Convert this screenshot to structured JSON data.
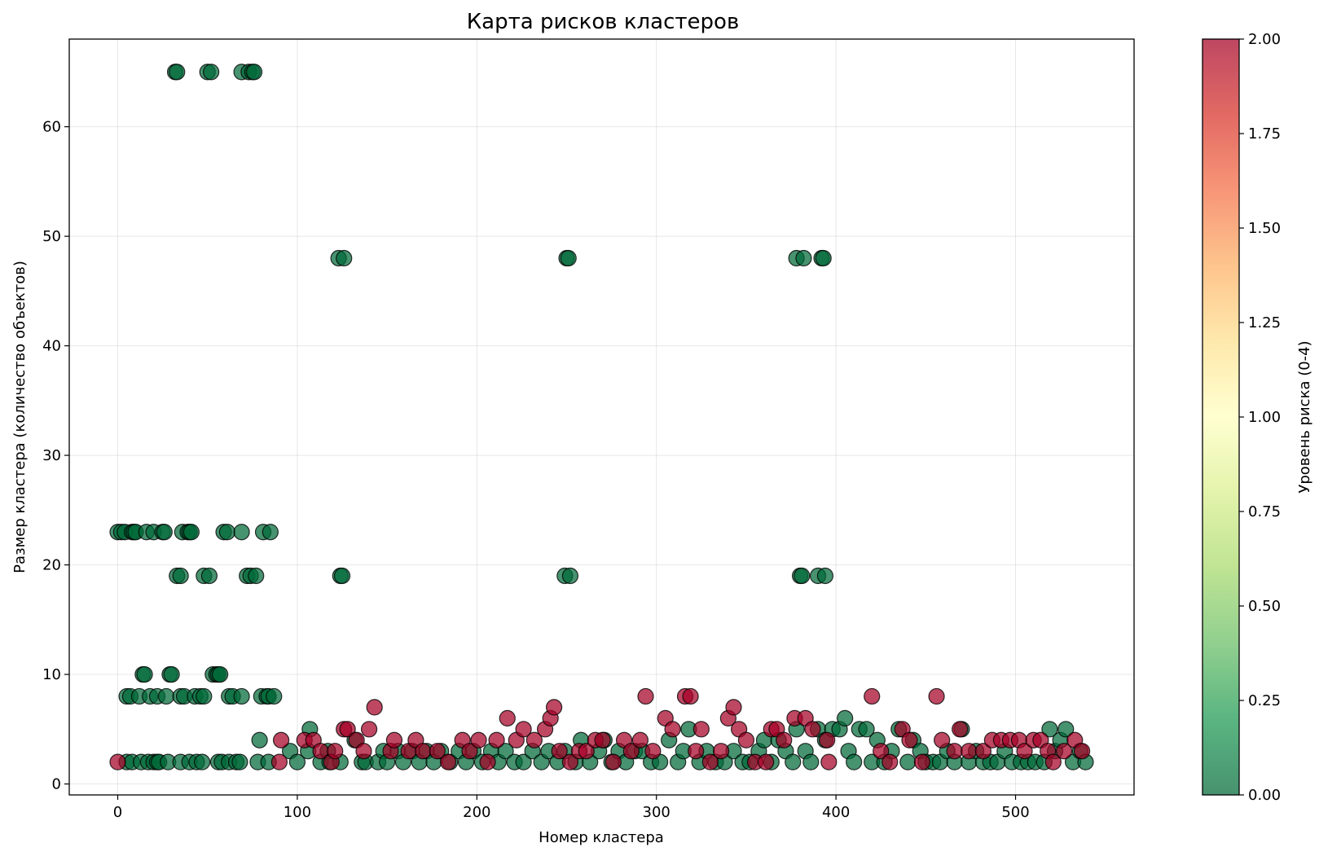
{
  "chart_data": {
    "type": "scatter",
    "title": "Карта рисков кластеров",
    "xlabel": "Номер кластера",
    "ylabel": "Размер кластера (количество объектов)",
    "xlim": [
      -27,
      566
    ],
    "ylim": [
      -1,
      68
    ],
    "xticks": [
      "0",
      "100",
      "200",
      "300",
      "400",
      "500"
    ],
    "xtick_values": [
      0,
      100,
      200,
      300,
      400,
      500
    ],
    "yticks": [
      "0",
      "10",
      "20",
      "30",
      "40",
      "50",
      "60"
    ],
    "ytick_values": [
      0,
      10,
      20,
      30,
      40,
      50,
      60
    ],
    "grid": true,
    "colorbar": {
      "label": "Уровень риска (0-4)",
      "range": [
        0,
        2
      ],
      "colormap": "RdYlGn_r",
      "ticks": [
        "0.00",
        "0.25",
        "0.50",
        "0.75",
        "1.00",
        "1.25",
        "1.50",
        "1.75",
        "2.00"
      ],
      "tick_values": [
        0,
        0.25,
        0.5,
        0.75,
        1.0,
        1.25,
        1.5,
        1.75,
        2.0
      ],
      "colors": [
        "#006837",
        "#1a9850",
        "#66bd63",
        "#a6d96a",
        "#d9ef8b",
        "#ffffbf",
        "#fee08b",
        "#fdae61",
        "#f46d43",
        "#d73027",
        "#a50026"
      ]
    },
    "points_risk0": [
      [
        0,
        23
      ],
      [
        2,
        23
      ],
      [
        4,
        23
      ],
      [
        8,
        23
      ],
      [
        9,
        23
      ],
      [
        10,
        23
      ],
      [
        16,
        23
      ],
      [
        20,
        23
      ],
      [
        25,
        23
      ],
      [
        26,
        23
      ],
      [
        36,
        23
      ],
      [
        39,
        23
      ],
      [
        40,
        23
      ],
      [
        41,
        23
      ],
      [
        59,
        23
      ],
      [
        61,
        23
      ],
      [
        69,
        23
      ],
      [
        81,
        23
      ],
      [
        85,
        23
      ],
      [
        32,
        65
      ],
      [
        33,
        65
      ],
      [
        50,
        65
      ],
      [
        52,
        65
      ],
      [
        69,
        65
      ],
      [
        73,
        65
      ],
      [
        75,
        65
      ],
      [
        76,
        65
      ],
      [
        33,
        19
      ],
      [
        35,
        19
      ],
      [
        48,
        19
      ],
      [
        51,
        19
      ],
      [
        72,
        19
      ],
      [
        74,
        19
      ],
      [
        77,
        19
      ],
      [
        124,
        19
      ],
      [
        125,
        19
      ],
      [
        249,
        19
      ],
      [
        252,
        19
      ],
      [
        380,
        19
      ],
      [
        381,
        19
      ],
      [
        390,
        19
      ],
      [
        394,
        19
      ],
      [
        123,
        48
      ],
      [
        126,
        48
      ],
      [
        250,
        48
      ],
      [
        251,
        48
      ],
      [
        378,
        48
      ],
      [
        382,
        48
      ],
      [
        392,
        48
      ],
      [
        393,
        48
      ],
      [
        14,
        10
      ],
      [
        15,
        10
      ],
      [
        29,
        10
      ],
      [
        30,
        10
      ],
      [
        53,
        10
      ],
      [
        55,
        10
      ],
      [
        56,
        10
      ],
      [
        57,
        10
      ],
      [
        5,
        8
      ],
      [
        7,
        8
      ],
      [
        12,
        8
      ],
      [
        18,
        8
      ],
      [
        22,
        8
      ],
      [
        27,
        8
      ],
      [
        35,
        8
      ],
      [
        37,
        8
      ],
      [
        43,
        8
      ],
      [
        46,
        8
      ],
      [
        48,
        8
      ],
      [
        62,
        8
      ],
      [
        64,
        8
      ],
      [
        69,
        8
      ],
      [
        80,
        8
      ],
      [
        83,
        8
      ],
      [
        84,
        8
      ],
      [
        87,
        8
      ],
      [
        5,
        2
      ],
      [
        8,
        2
      ],
      [
        13,
        2
      ],
      [
        17,
        2
      ],
      [
        20,
        2
      ],
      [
        22,
        2
      ],
      [
        23,
        2
      ],
      [
        28,
        2
      ],
      [
        35,
        2
      ],
      [
        40,
        2
      ],
      [
        44,
        2
      ],
      [
        47,
        2
      ],
      [
        56,
        2
      ],
      [
        58,
        2
      ],
      [
        62,
        2
      ],
      [
        66,
        2
      ],
      [
        68,
        2
      ],
      [
        78,
        2
      ],
      [
        84,
        2
      ],
      [
        79,
        4
      ],
      [
        96,
        3
      ],
      [
        100,
        2
      ],
      [
        106,
        3
      ],
      [
        107,
        5
      ],
      [
        113,
        2
      ],
      [
        117,
        3
      ],
      [
        118,
        2
      ],
      [
        124,
        2
      ],
      [
        132,
        4
      ],
      [
        136,
        2
      ],
      [
        138,
        2
      ],
      [
        145,
        2
      ],
      [
        148,
        3
      ],
      [
        150,
        2
      ],
      [
        156,
        3
      ],
      [
        159,
        2
      ],
      [
        164,
        3
      ],
      [
        168,
        2
      ],
      [
        172,
        3
      ],
      [
        176,
        2
      ],
      [
        180,
        3
      ],
      [
        185,
        2
      ],
      [
        190,
        3
      ],
      [
        194,
        2
      ],
      [
        198,
        3
      ],
      [
        203,
        2
      ],
      [
        208,
        3
      ],
      [
        212,
        2
      ],
      [
        216,
        3
      ],
      [
        221,
        2
      ],
      [
        226,
        2
      ],
      [
        231,
        3
      ],
      [
        236,
        2
      ],
      [
        240,
        3
      ],
      [
        245,
        2
      ],
      [
        249,
        3
      ],
      [
        255,
        2
      ],
      [
        258,
        4
      ],
      [
        263,
        2
      ],
      [
        268,
        3
      ],
      [
        271,
        4
      ],
      [
        275,
        2
      ],
      [
        279,
        3
      ],
      [
        283,
        2
      ],
      [
        288,
        3
      ],
      [
        292,
        3
      ],
      [
        297,
        2
      ],
      [
        302,
        2
      ],
      [
        307,
        4
      ],
      [
        312,
        2
      ],
      [
        315,
        3
      ],
      [
        318,
        5
      ],
      [
        324,
        2
      ],
      [
        328,
        3
      ],
      [
        333,
        2
      ],
      [
        338,
        2
      ],
      [
        343,
        3
      ],
      [
        348,
        2
      ],
      [
        352,
        2
      ],
      [
        357,
        3
      ],
      [
        360,
        4
      ],
      [
        364,
        2
      ],
      [
        368,
        4
      ],
      [
        372,
        3
      ],
      [
        376,
        2
      ],
      [
        378,
        5
      ],
      [
        383,
        3
      ],
      [
        386,
        2
      ],
      [
        390,
        5
      ],
      [
        394,
        4
      ],
      [
        398,
        5
      ],
      [
        402,
        5
      ],
      [
        405,
        6
      ],
      [
        407,
        3
      ],
      [
        410,
        2
      ],
      [
        413,
        5
      ],
      [
        417,
        5
      ],
      [
        420,
        2
      ],
      [
        423,
        4
      ],
      [
        427,
        2
      ],
      [
        431,
        3
      ],
      [
        435,
        5
      ],
      [
        440,
        2
      ],
      [
        443,
        4
      ],
      [
        447,
        3
      ],
      [
        450,
        2
      ],
      [
        454,
        2
      ],
      [
        458,
        2
      ],
      [
        462,
        3
      ],
      [
        466,
        2
      ],
      [
        470,
        5
      ],
      [
        474,
        2
      ],
      [
        478,
        3
      ],
      [
        482,
        2
      ],
      [
        486,
        2
      ],
      [
        490,
        2
      ],
      [
        494,
        3
      ],
      [
        498,
        2
      ],
      [
        503,
        2
      ],
      [
        507,
        2
      ],
      [
        511,
        2
      ],
      [
        516,
        2
      ],
      [
        519,
        5
      ],
      [
        522,
        3
      ],
      [
        525,
        4
      ],
      [
        528,
        5
      ],
      [
        532,
        2
      ],
      [
        536,
        3
      ],
      [
        539,
        2
      ]
    ],
    "points_risk2": [
      [
        0,
        2
      ],
      [
        90,
        2
      ],
      [
        91,
        4
      ],
      [
        104,
        4
      ],
      [
        109,
        4
      ],
      [
        113,
        3
      ],
      [
        119,
        2
      ],
      [
        121,
        3
      ],
      [
        126,
        5
      ],
      [
        128,
        5
      ],
      [
        133,
        4
      ],
      [
        137,
        3
      ],
      [
        140,
        5
      ],
      [
        143,
        7
      ],
      [
        152,
        3
      ],
      [
        154,
        4
      ],
      [
        162,
        3
      ],
      [
        166,
        4
      ],
      [
        170,
        3
      ],
      [
        178,
        3
      ],
      [
        184,
        2
      ],
      [
        192,
        4
      ],
      [
        196,
        3
      ],
      [
        201,
        4
      ],
      [
        206,
        2
      ],
      [
        211,
        4
      ],
      [
        217,
        6
      ],
      [
        222,
        4
      ],
      [
        226,
        5
      ],
      [
        232,
        4
      ],
      [
        238,
        5
      ],
      [
        241,
        6
      ],
      [
        243,
        7
      ],
      [
        246,
        3
      ],
      [
        252,
        2
      ],
      [
        257,
        3
      ],
      [
        261,
        3
      ],
      [
        266,
        4
      ],
      [
        270,
        4
      ],
      [
        276,
        2
      ],
      [
        282,
        4
      ],
      [
        286,
        3
      ],
      [
        291,
        4
      ],
      [
        294,
        8
      ],
      [
        298,
        3
      ],
      [
        305,
        6
      ],
      [
        309,
        5
      ],
      [
        316,
        8
      ],
      [
        319,
        8
      ],
      [
        322,
        3
      ],
      [
        325,
        5
      ],
      [
        330,
        2
      ],
      [
        336,
        3
      ],
      [
        340,
        6
      ],
      [
        343,
        7
      ],
      [
        346,
        5
      ],
      [
        350,
        4
      ],
      [
        355,
        2
      ],
      [
        361,
        2
      ],
      [
        364,
        5
      ],
      [
        367,
        5
      ],
      [
        371,
        4
      ],
      [
        377,
        6
      ],
      [
        383,
        6
      ],
      [
        387,
        5
      ],
      [
        395,
        4
      ],
      [
        396,
        2
      ],
      [
        420,
        8
      ],
      [
        425,
        3
      ],
      [
        430,
        2
      ],
      [
        437,
        5
      ],
      [
        441,
        4
      ],
      [
        448,
        2
      ],
      [
        456,
        8
      ],
      [
        459,
        4
      ],
      [
        466,
        3
      ],
      [
        469,
        5
      ],
      [
        474,
        3
      ],
      [
        482,
        3
      ],
      [
        487,
        4
      ],
      [
        492,
        4
      ],
      [
        497,
        4
      ],
      [
        502,
        4
      ],
      [
        505,
        3
      ],
      [
        510,
        4
      ],
      [
        514,
        4
      ],
      [
        518,
        3
      ],
      [
        521,
        2
      ],
      [
        527,
        3
      ],
      [
        533,
        4
      ],
      [
        537,
        3
      ]
    ]
  }
}
